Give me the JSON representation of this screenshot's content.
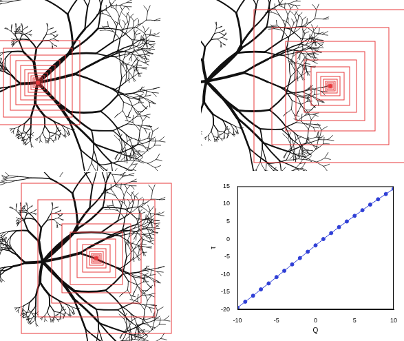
{
  "chart_data": {
    "type": "line",
    "x_label": "Q",
    "y_label": "τ",
    "x": [
      -10,
      -9,
      -8,
      -7,
      -6,
      -5,
      -4,
      -3,
      -2,
      -1,
      0,
      1,
      2,
      3,
      4,
      5,
      6,
      7,
      8,
      9,
      10
    ],
    "series": [
      {
        "color": "#2f3fd6",
        "marker": "circle",
        "line_style": "solid",
        "values": [
          -19.5,
          -17.8,
          -16.1,
          -14.3,
          -12.6,
          -10.8,
          -9.0,
          -7.2,
          -5.4,
          -3.6,
          -1.8,
          0,
          1.7,
          3.4,
          5.0,
          6.6,
          8.2,
          9.8,
          11.3,
          12.8,
          14.3
        ]
      }
    ],
    "xlim": [
      -10,
      10
    ],
    "xticks": [
      -10,
      -5,
      0,
      5,
      10
    ],
    "ylim": [
      -20,
      15
    ],
    "yticks": [
      -20,
      -15,
      -10,
      -5,
      0,
      5,
      10,
      15
    ],
    "grid": false
  }
}
